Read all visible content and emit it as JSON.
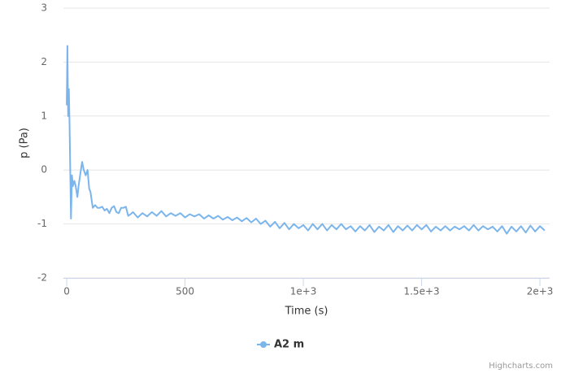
{
  "chart_data": {
    "type": "line",
    "y_axis_label": "p (Pa)",
    "x_axis_label": "Time (s)",
    "credits": "Highcharts.com",
    "xlim": [
      -14,
      2041
    ],
    "ylim": [
      -2,
      3
    ],
    "xticks": [
      0,
      500,
      {
        "value": 1000,
        "label": "1e+3"
      },
      {
        "value": 1500,
        "label": "1.5e+3"
      },
      {
        "value": 2000,
        "label": "2e+3"
      }
    ],
    "yticks": [
      -2,
      -1,
      0,
      1,
      2,
      3
    ],
    "grid": true,
    "legend": "bottom",
    "x": [
      0,
      3,
      6,
      9,
      12,
      18,
      22,
      26,
      32,
      38,
      45,
      50,
      58,
      65,
      72,
      80,
      88,
      95,
      100,
      110,
      120,
      130,
      140,
      150,
      160,
      170,
      180,
      190,
      200,
      210,
      220,
      230,
      240,
      250,
      260,
      270,
      280,
      300,
      320,
      340,
      360,
      380,
      400,
      420,
      440,
      460,
      480,
      500,
      520,
      540,
      560,
      580,
      600,
      620,
      640,
      660,
      680,
      700,
      720,
      740,
      760,
      780,
      800,
      820,
      840,
      860,
      880,
      900,
      920,
      940,
      960,
      980,
      1000,
      1020,
      1040,
      1060,
      1080,
      1100,
      1120,
      1140,
      1160,
      1180,
      1200,
      1220,
      1240,
      1260,
      1280,
      1300,
      1320,
      1340,
      1360,
      1380,
      1400,
      1420,
      1440,
      1460,
      1480,
      1500,
      1520,
      1540,
      1560,
      1580,
      1600,
      1620,
      1640,
      1660,
      1680,
      1700,
      1720,
      1740,
      1760,
      1780,
      1800,
      1820,
      1840,
      1860,
      1880,
      1900,
      1920,
      1940,
      1960,
      1980,
      2000,
      2020
    ],
    "series": [
      {
        "name": "A2 m",
        "color": "#7cb5ec",
        "values": [
          1.2,
          2.3,
          1.0,
          1.5,
          0.8,
          -0.9,
          -0.1,
          -0.3,
          -0.2,
          -0.3,
          -0.5,
          -0.3,
          -0.05,
          0.15,
          0.0,
          -0.1,
          0.0,
          -0.35,
          -0.4,
          -0.7,
          -0.65,
          -0.7,
          -0.7,
          -0.68,
          -0.75,
          -0.72,
          -0.8,
          -0.7,
          -0.67,
          -0.78,
          -0.8,
          -0.7,
          -0.7,
          -0.68,
          -0.85,
          -0.82,
          -0.78,
          -0.88,
          -0.8,
          -0.86,
          -0.78,
          -0.85,
          -0.76,
          -0.86,
          -0.8,
          -0.85,
          -0.8,
          -0.88,
          -0.82,
          -0.86,
          -0.82,
          -0.9,
          -0.84,
          -0.9,
          -0.85,
          -0.92,
          -0.87,
          -0.93,
          -0.88,
          -0.95,
          -0.89,
          -0.97,
          -0.9,
          -1.0,
          -0.94,
          -1.05,
          -0.96,
          -1.08,
          -0.98,
          -1.1,
          -1.0,
          -1.08,
          -1.02,
          -1.12,
          -1.0,
          -1.1,
          -1.0,
          -1.12,
          -1.02,
          -1.1,
          -1.0,
          -1.1,
          -1.04,
          -1.14,
          -1.04,
          -1.12,
          -1.02,
          -1.15,
          -1.05,
          -1.12,
          -1.02,
          -1.15,
          -1.04,
          -1.12,
          -1.03,
          -1.12,
          -1.02,
          -1.1,
          -1.02,
          -1.14,
          -1.05,
          -1.12,
          -1.04,
          -1.12,
          -1.05,
          -1.1,
          -1.04,
          -1.12,
          -1.02,
          -1.12,
          -1.04,
          -1.1,
          -1.05,
          -1.14,
          -1.04,
          -1.18,
          -1.05,
          -1.14,
          -1.04,
          -1.16,
          -1.03,
          -1.14,
          -1.04,
          -1.12
        ]
      }
    ]
  }
}
